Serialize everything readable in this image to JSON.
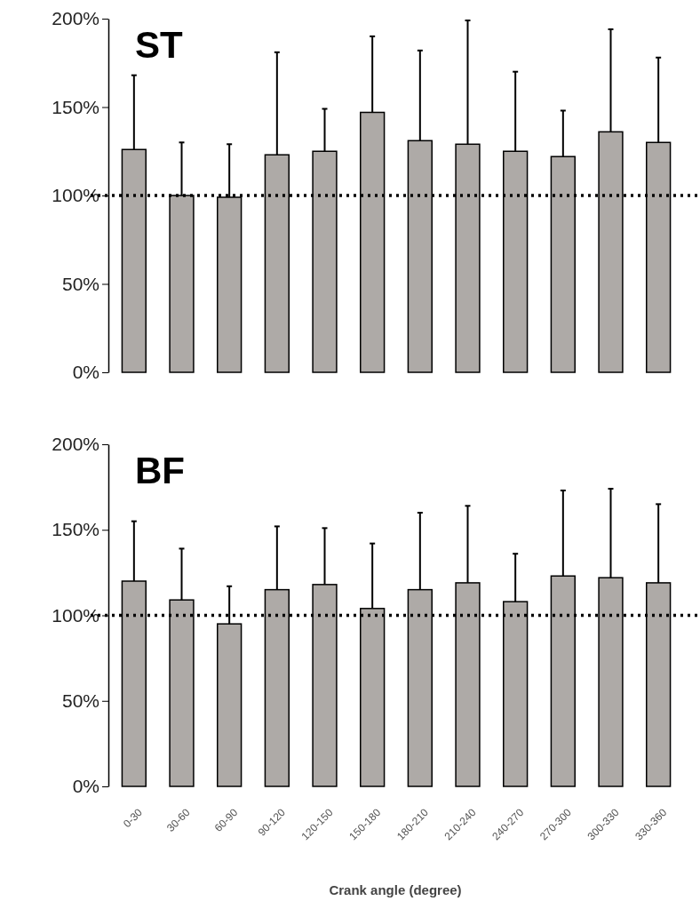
{
  "chart_data": [
    {
      "type": "bar",
      "title": "ST",
      "categories": [
        null,
        null,
        null,
        null,
        null,
        null,
        null,
        null,
        null,
        null,
        null,
        null
      ],
      "values": [
        126,
        100,
        99,
        123,
        125,
        147,
        131,
        129,
        125,
        122,
        136,
        130
      ],
      "errors": [
        [
          126,
          168
        ],
        [
          100,
          130
        ],
        [
          99,
          129
        ],
        [
          123,
          181
        ],
        [
          125,
          149
        ],
        [
          147,
          190
        ],
        [
          131,
          182
        ],
        [
          129,
          199
        ],
        [
          125,
          170
        ],
        [
          122,
          148
        ],
        [
          136,
          194
        ],
        [
          130,
          178
        ]
      ],
      "color": "#aeaaa7",
      "ylim": [
        0,
        200
      ],
      "yticks": [
        {
          "value": 0,
          "label": "0%"
        },
        {
          "value": 50,
          "label": "50%"
        },
        {
          "value": 100,
          "label": "100%"
        },
        {
          "value": 150,
          "label": "150%"
        },
        {
          "value": 200,
          "label": "200%"
        }
      ],
      "ref_lines": [
        {
          "axis": "y",
          "value": 100,
          "line_style": "dotted",
          "color": "#000000"
        }
      ],
      "tick_labels": "y"
    },
    {
      "type": "bar",
      "title": "BF",
      "xlabel": "Crank angle (degree)",
      "categories": [
        "0-30",
        "30-60",
        "60-90",
        "90-120",
        "120-150",
        "150-180",
        "180-210",
        "210-240",
        "240-270",
        "270-300",
        "300-330",
        "330-360"
      ],
      "values": [
        120,
        109,
        95,
        115,
        118,
        104,
        115,
        119,
        108,
        123,
        122,
        119
      ],
      "errors": [
        [
          120,
          155
        ],
        [
          109,
          139
        ],
        [
          95,
          117
        ],
        [
          115,
          152
        ],
        [
          118,
          151
        ],
        [
          104,
          142
        ],
        [
          115,
          160
        ],
        [
          119,
          164
        ],
        [
          108,
          136
        ],
        [
          123,
          173
        ],
        [
          122,
          174
        ],
        [
          119,
          165
        ]
      ],
      "color": "#aeaaa7",
      "ylim": [
        0,
        200
      ],
      "yticks": [
        {
          "value": 0,
          "label": "0%"
        },
        {
          "value": 50,
          "label": "50%"
        },
        {
          "value": 100,
          "label": "100%"
        },
        {
          "value": 150,
          "label": "150%"
        },
        {
          "value": 200,
          "label": "200%"
        }
      ],
      "ref_lines": [
        {
          "axis": "y",
          "value": 100,
          "line_style": "dotted",
          "color": "#000000"
        }
      ]
    }
  ]
}
